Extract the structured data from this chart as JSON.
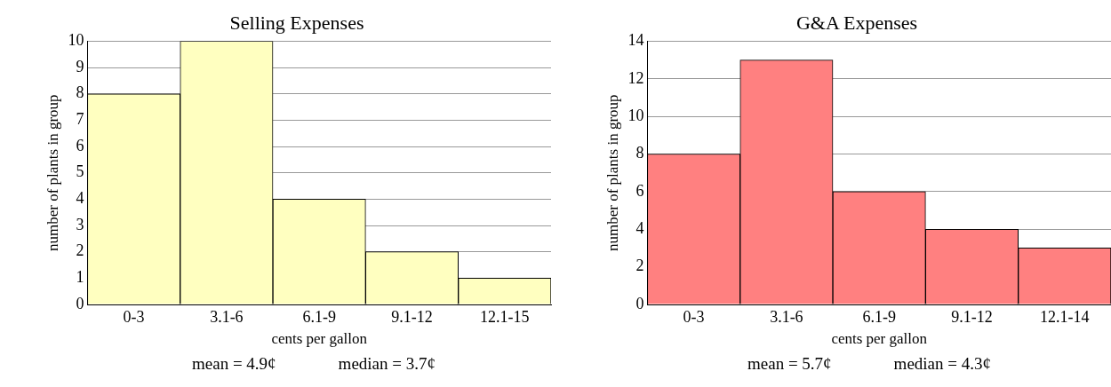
{
  "chart_data": [
    {
      "type": "bar",
      "title": "Selling Expenses",
      "xlabel": "cents per gallon",
      "ylabel": "number of plants in group",
      "categories": [
        "0-3",
        "3.1-6",
        "6.1-9",
        "9.1-12",
        "12.1-15"
      ],
      "values": [
        8,
        10,
        4,
        2,
        1
      ],
      "color": "#ffffc0",
      "ylim": [
        0,
        10
      ],
      "yticks": [
        0,
        1,
        2,
        3,
        4,
        5,
        6,
        7,
        8,
        9,
        10
      ],
      "grid": "y",
      "legend": false,
      "annotations": [
        "mean = 4.9¢",
        "median = 3.7¢"
      ]
    },
    {
      "type": "bar",
      "title": "G&A Expenses",
      "xlabel": "cents per gallon",
      "ylabel": "number of plants in group",
      "categories": [
        "0-3",
        "3.1-6",
        "6.1-9",
        "9.1-12",
        "12.1-14"
      ],
      "values": [
        8,
        13,
        6,
        4,
        3
      ],
      "color": "#ff8080",
      "ylim": [
        0,
        14
      ],
      "yticks": [
        0,
        2,
        4,
        6,
        8,
        10,
        12,
        14
      ],
      "grid": "y",
      "legend": false,
      "annotations": [
        "mean = 5.7¢",
        "median = 4.3¢"
      ]
    }
  ]
}
